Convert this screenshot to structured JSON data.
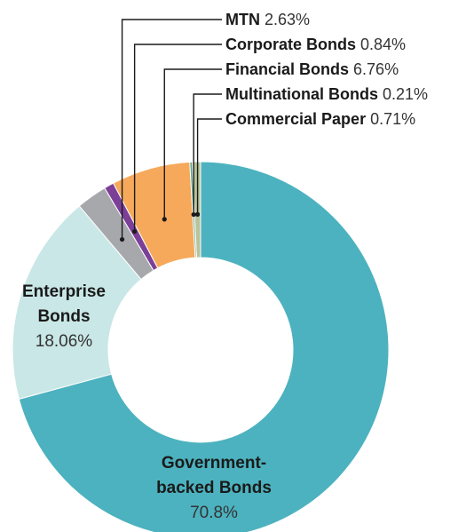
{
  "chart_data": {
    "type": "pie",
    "donut": true,
    "title": "",
    "slices": [
      {
        "label": "Commercial Paper",
        "value": 0.71,
        "value_text": "0.71%",
        "color": "#b9c39b"
      },
      {
        "label": "Government-backed Bonds",
        "value": 70.8,
        "value_text": "70.8%",
        "color": "#4cb2bf"
      },
      {
        "label": "Enterprise Bonds",
        "value": 18.06,
        "value_text": "18.06%",
        "color": "#c9e7e6"
      },
      {
        "label": "MTN",
        "value": 2.63,
        "value_text": "2.63%",
        "color": "#a7a8ab"
      },
      {
        "label": "Corporate Bonds",
        "value": 0.84,
        "value_text": "0.84%",
        "color": "#7b3f98"
      },
      {
        "label": "Financial Bonds",
        "value": 6.76,
        "value_text": "6.76%",
        "color": "#f6a95b"
      },
      {
        "label": "Multinational Bonds",
        "value": 0.21,
        "value_text": "0.21%",
        "color": "#5aa78e"
      }
    ],
    "label_lines": {
      "enterprise": [
        "Enterprise",
        "Bonds"
      ],
      "government": [
        "Government-",
        "backed Bonds"
      ]
    }
  }
}
